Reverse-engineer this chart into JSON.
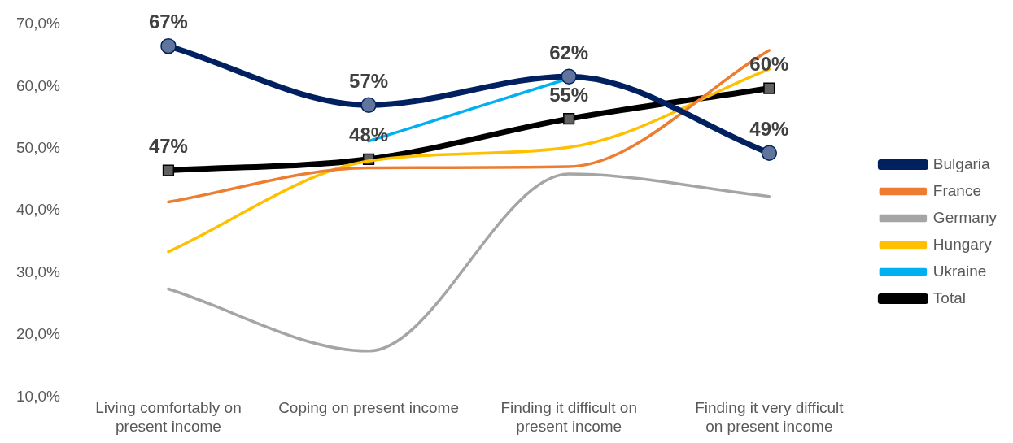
{
  "chart_data": {
    "type": "line",
    "categories": [
      "Living comfortably on present income",
      "Coping on present income",
      "Finding it difficult on present income",
      "Finding it very difficult on present income"
    ],
    "series": [
      {
        "name": "Bulgaria",
        "color": "#002060",
        "marker": "circle",
        "values": [
          66.5,
          57,
          61.6,
          49.3
        ],
        "value_labels": [
          "67%",
          "57%",
          "62%",
          "49%"
        ]
      },
      {
        "name": "France",
        "color": "#ed7d31",
        "marker": "none",
        "values": [
          41.4,
          46.9,
          47.1,
          65.8
        ]
      },
      {
        "name": "Germany",
        "color": "#a5a5a5",
        "marker": "none",
        "values": [
          27.4,
          17.4,
          45.9,
          42.3
        ]
      },
      {
        "name": "Hungary",
        "color": "#ffc000",
        "marker": "none",
        "values": [
          33.4,
          48,
          50.2,
          62.8
        ]
      },
      {
        "name": "Ukraine",
        "color": "#00b0f0",
        "marker": "none",
        "values": [
          null,
          51.2,
          61.3,
          null
        ]
      },
      {
        "name": "Total",
        "color": "#000000",
        "marker": "square",
        "values": [
          46.5,
          48.3,
          54.8,
          59.7
        ],
        "value_labels": [
          "47%",
          "48%",
          "55%",
          "60%"
        ]
      }
    ],
    "ylim": [
      10,
      70
    ],
    "yticks": [
      {
        "value": 10,
        "label": "10,0%"
      },
      {
        "value": 20,
        "label": "20,0%"
      },
      {
        "value": 30,
        "label": "30,0%"
      },
      {
        "value": 40,
        "label": "40,0%"
      },
      {
        "value": 50,
        "label": "50,0%"
      },
      {
        "value": 60,
        "label": "60,0%"
      },
      {
        "value": 70,
        "label": "70,0%"
      }
    ],
    "grid": false,
    "legend": "right"
  }
}
